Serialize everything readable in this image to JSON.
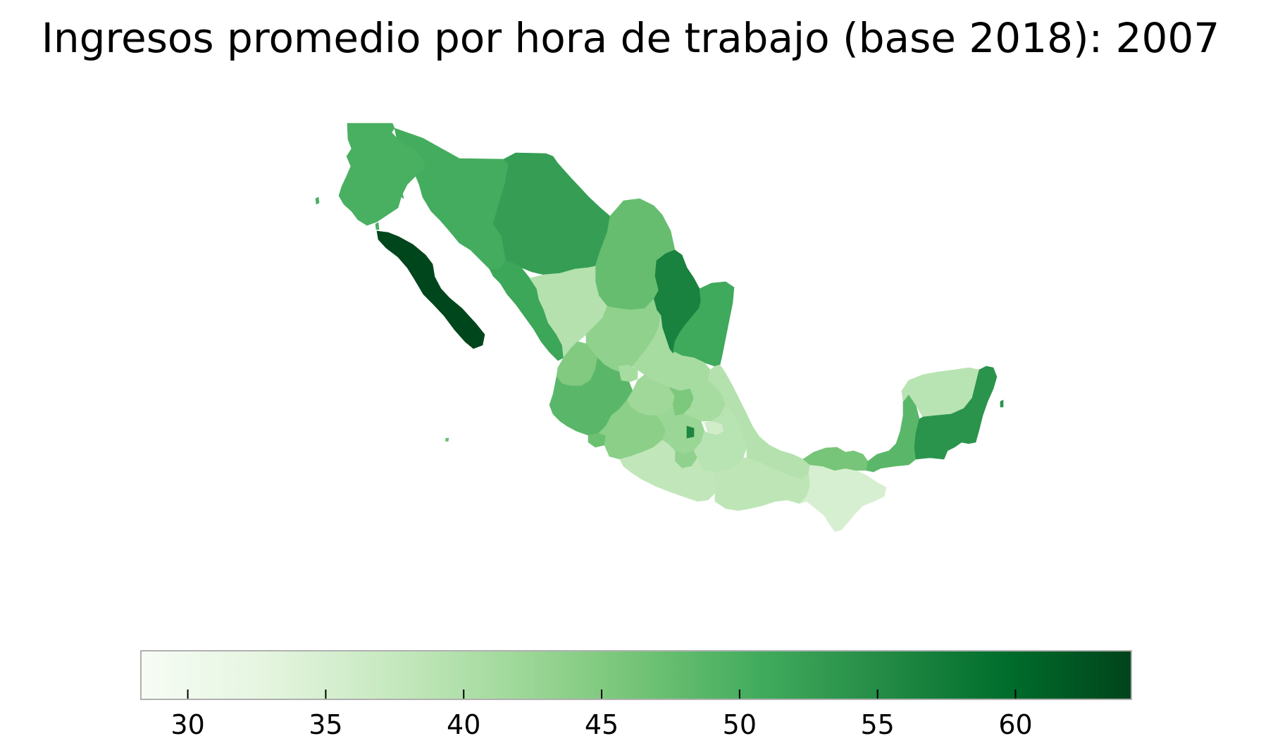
{
  "title": "Ingresos promedio por hora de trabajo (base 2018): 2007",
  "colors": {
    "scale": [
      "#f7fcf5",
      "#e5f5e0",
      "#c7e9c0",
      "#a1d99b",
      "#74c476",
      "#41ab5d",
      "#238b45",
      "#006d2c",
      "#00441b"
    ],
    "colorbar_outline": "#b0b0b0"
  },
  "colorbar": {
    "min": 28.3,
    "max": 64.2,
    "orientation": "horizontal",
    "placement": "bottom",
    "ticks": [
      {
        "value": 30,
        "label": "30"
      },
      {
        "value": 35,
        "label": "35"
      },
      {
        "value": 40,
        "label": "40"
      },
      {
        "value": 45,
        "label": "45"
      },
      {
        "value": 50,
        "label": "50"
      },
      {
        "value": 55,
        "label": "55"
      },
      {
        "value": 60,
        "label": "60"
      }
    ]
  },
  "regions": [
    {
      "id": "baja-california",
      "value": 50.0
    },
    {
      "id": "baja-california-sur",
      "value": 64.0
    },
    {
      "id": "sonora",
      "value": 50.5
    },
    {
      "id": "chihuahua",
      "value": 52.5
    },
    {
      "id": "coahuila",
      "value": 47.5
    },
    {
      "id": "nuevo-leon",
      "value": 56.5
    },
    {
      "id": "tamaulipas",
      "value": 51.0
    },
    {
      "id": "sinaloa",
      "value": 51.5
    },
    {
      "id": "durango",
      "value": 39.5
    },
    {
      "id": "zacatecas",
      "value": 43.5
    },
    {
      "id": "san-luis-potosi",
      "value": 41.0
    },
    {
      "id": "nayarit",
      "value": 45.0
    },
    {
      "id": "jalisco",
      "value": 48.5
    },
    {
      "id": "aguascalientes",
      "value": 41.0
    },
    {
      "id": "guanajuato",
      "value": 42.0
    },
    {
      "id": "queretaro",
      "value": 45.5
    },
    {
      "id": "hidalgo",
      "value": 41.0
    },
    {
      "id": "colima",
      "value": 47.0
    },
    {
      "id": "michoacan",
      "value": 44.0
    },
    {
      "id": "mexico",
      "value": 42.5
    },
    {
      "id": "cdmx",
      "value": 56.0
    },
    {
      "id": "tlaxcala",
      "value": 36.0
    },
    {
      "id": "morelos",
      "value": 43.5
    },
    {
      "id": "puebla",
      "value": 39.0
    },
    {
      "id": "veracruz",
      "value": 39.5
    },
    {
      "id": "guerrero",
      "value": 38.0
    },
    {
      "id": "oaxaca",
      "value": 38.5
    },
    {
      "id": "chiapas",
      "value": 35.0
    },
    {
      "id": "tabasco",
      "value": 46.0
    },
    {
      "id": "campeche",
      "value": 48.5
    },
    {
      "id": "yucatan",
      "value": 39.0
    },
    {
      "id": "quintana-roo",
      "value": 54.0
    }
  ]
}
